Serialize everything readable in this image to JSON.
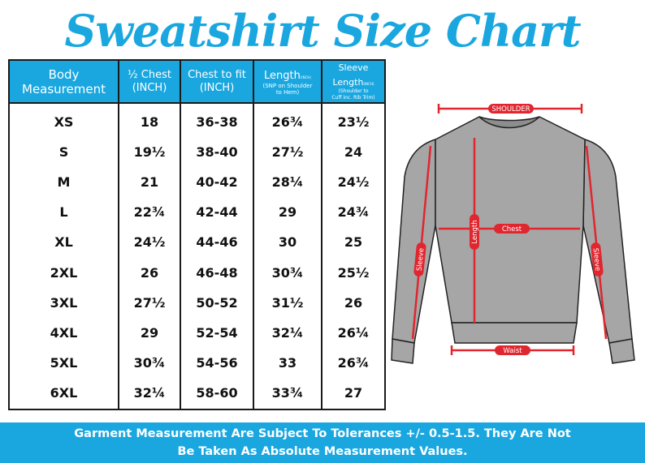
{
  "title": "Sweatshirt Size Chart",
  "table": {
    "headers": [
      {
        "main": "Body",
        "main2": "Measurement"
      },
      {
        "main": "½ Chest",
        "main2": "(INCH)"
      },
      {
        "main": "Chest to fit",
        "main2": "(INCH)"
      },
      {
        "main": "Length",
        "tiny": "(INCH)",
        "sub1": "(SNP on Shoulder",
        "sub2": "to Hem)"
      },
      {
        "main": "Sleeve",
        "main2": "Length",
        "tiny": "(INCH)",
        "sub1": "(Shoulder to",
        "sub2": "Cuff inc. Rib Trim)"
      }
    ],
    "rows": [
      [
        "XS",
        "18",
        "36-38",
        "26¾",
        "23½"
      ],
      [
        "S",
        "19½",
        "38-40",
        "27½",
        "24"
      ],
      [
        "M",
        "21",
        "40-42",
        "28¼",
        "24½"
      ],
      [
        "L",
        "22¾",
        "42-44",
        "29",
        "24¾"
      ],
      [
        "XL",
        "24½",
        "44-46",
        "30",
        "25"
      ],
      [
        "2XL",
        "26",
        "46-48",
        "30¾",
        "25½"
      ],
      [
        "3XL",
        "27½",
        "50-52",
        "31½",
        "26"
      ],
      [
        "4XL",
        "29",
        "52-54",
        "32¼",
        "26¼"
      ],
      [
        "5XL",
        "30¾",
        "54-56",
        "33",
        "26¾"
      ],
      [
        "6XL",
        "32¼",
        "58-60",
        "33¾",
        "27"
      ]
    ]
  },
  "diagram": {
    "labels": {
      "shoulder": "SHOULDER",
      "chest": "Chest",
      "length": "Length",
      "sleeve_left": "Sleeve",
      "sleeve_right": "Sleeve",
      "waist": "Waist"
    }
  },
  "footer": {
    "line1": "Garment Measurement Are Subject To Tolerances +/- 0.5-1.5. They Are Not",
    "line2": "Be Taken As Absolute Measurement Values."
  },
  "colors": {
    "accent": "#1aa7e0",
    "measure": "#e0262f",
    "garment": "#a6a6a6"
  }
}
